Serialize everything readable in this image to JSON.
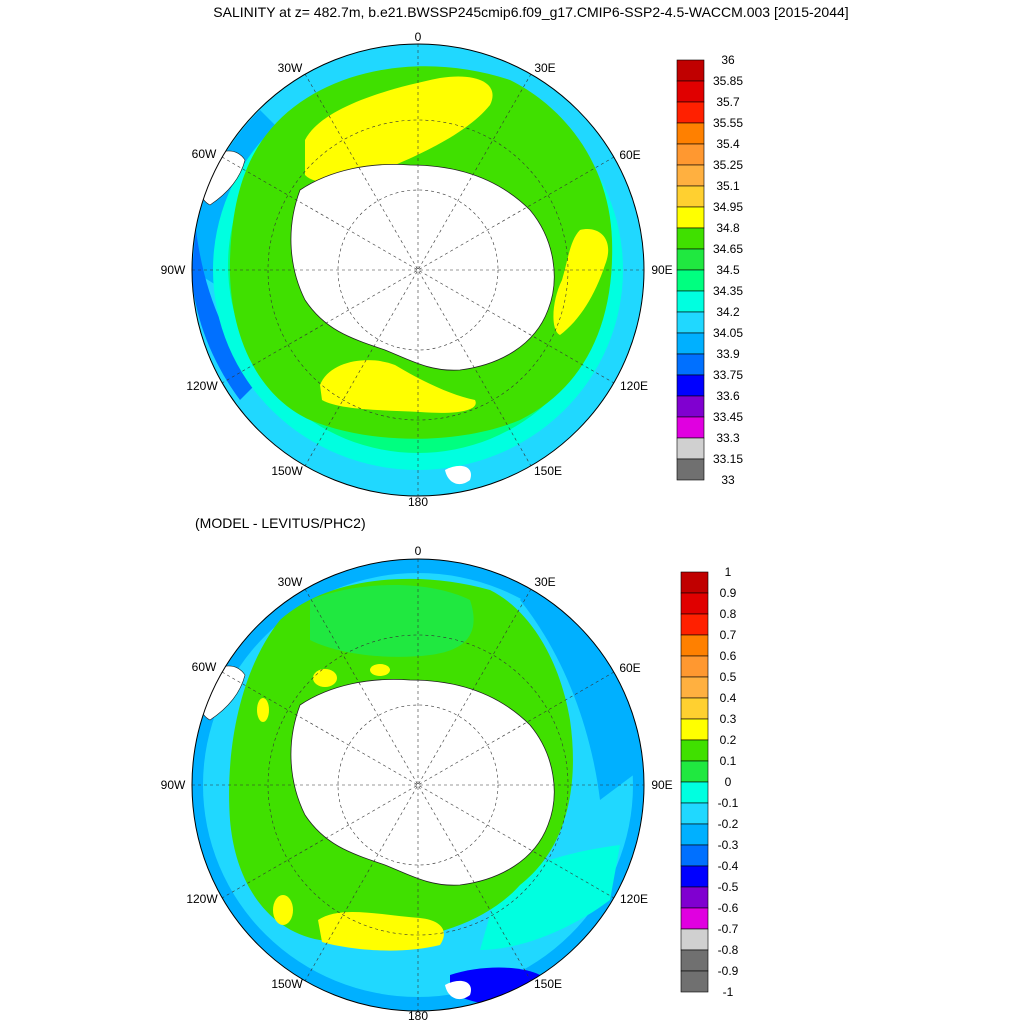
{
  "top_panel": {
    "title": "SALINITY at z= 482.7m, b.e21.BWSSP245cmip6.f09_g17.CMIP6-SSP2-4.5-WACCM.003 [2015-2044]",
    "longitude_labels": [
      "0",
      "30E",
      "60E",
      "90E",
      "120E",
      "150E",
      "180",
      "150W",
      "120W",
      "90W",
      "60W",
      "30W"
    ],
    "colorbar": {
      "labels": [
        "36",
        "35.85",
        "35.7",
        "35.55",
        "35.4",
        "35.25",
        "35.1",
        "34.95",
        "34.8",
        "34.65",
        "34.5",
        "34.35",
        "34.2",
        "34.05",
        "33.9",
        "33.75",
        "33.6",
        "33.45",
        "33.3",
        "33.15",
        "33"
      ],
      "colors": [
        "#c00000",
        "#e00000",
        "#ff2000",
        "#ff8000",
        "#ff9830",
        "#ffb040",
        "#ffd030",
        "#ffff00",
        "#40e000",
        "#20e840",
        "#00ff80",
        "#00ffe0",
        "#20d8ff",
        "#00b0ff",
        "#0070ff",
        "#0000ff",
        "#8000d0",
        "#e000e0",
        "#d0d0d0",
        "#707070"
      ]
    }
  },
  "bottom_panel": {
    "title": "(MODEL - LEVITUS/PHC2)",
    "longitude_labels": [
      "0",
      "30E",
      "60E",
      "90E",
      "120E",
      "150E",
      "180",
      "150W",
      "120W",
      "90W",
      "60W",
      "30W"
    ],
    "colorbar": {
      "labels": [
        "1",
        "0.9",
        "0.8",
        "0.7",
        "0.6",
        "0.5",
        "0.4",
        "0.3",
        "0.2",
        "0.1",
        "0",
        "-0.1",
        "-0.2",
        "-0.3",
        "-0.4",
        "-0.5",
        "-0.6",
        "-0.7",
        "-0.8",
        "-0.9",
        "-1"
      ],
      "colors": [
        "#c00000",
        "#e00000",
        "#ff2000",
        "#ff8000",
        "#ff9830",
        "#ffb040",
        "#ffd030",
        "#ffff00",
        "#40e000",
        "#20e840",
        "#00ffe0",
        "#20d8ff",
        "#00b0ff",
        "#0070ff",
        "#0000ff",
        "#8000d0",
        "#e000e0",
        "#d0d0d0",
        "#707070",
        "#707070"
      ]
    }
  }
}
